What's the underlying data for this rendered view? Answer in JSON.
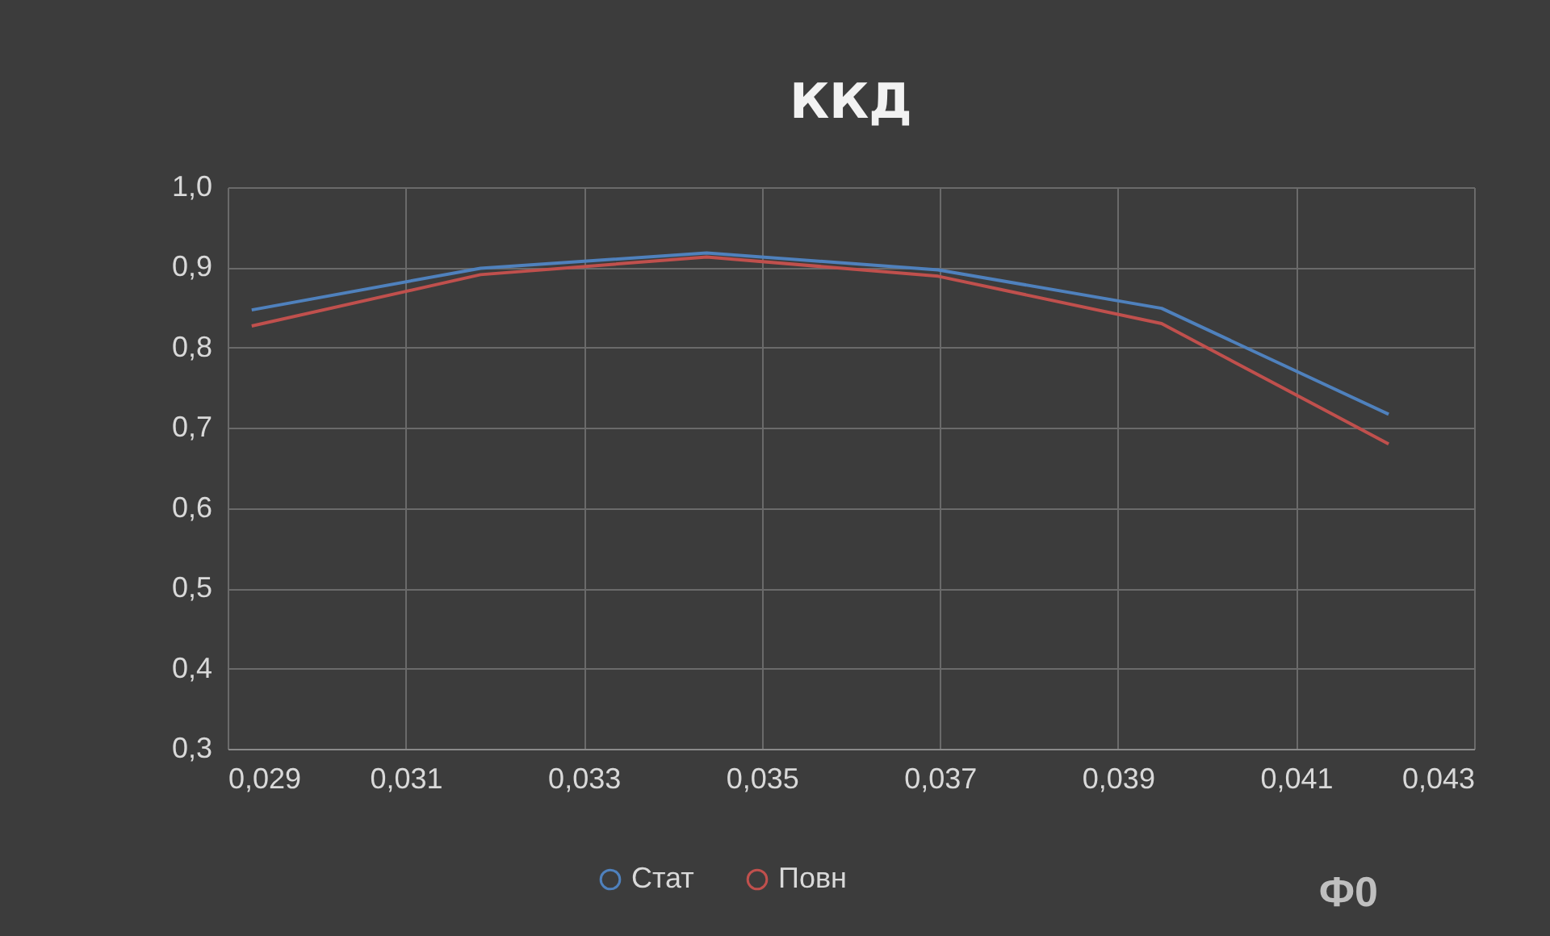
{
  "chart_data": {
    "type": "line",
    "title": "ККД",
    "xlabel": "Ф0",
    "x": [
      0.02927,
      0.03184,
      0.03438,
      0.03698,
      0.03949,
      0.04204
    ],
    "series": [
      {
        "name": "Стат",
        "color": "#4f81bd",
        "values": [
          0.847,
          0.899,
          0.918,
          0.897,
          0.849,
          0.717
        ]
      },
      {
        "name": "Повн",
        "color": "#c0504d",
        "values": [
          0.827,
          0.891,
          0.913,
          0.889,
          0.83,
          0.68
        ]
      }
    ],
    "xlim": [
      0.029,
      0.043
    ],
    "xticks": [
      {
        "value": 0.029,
        "label": "0,029"
      },
      {
        "value": 0.031,
        "label": "0,031"
      },
      {
        "value": 0.033,
        "label": "0,033"
      },
      {
        "value": 0.035,
        "label": "0,035"
      },
      {
        "value": 0.037,
        "label": "0,037"
      },
      {
        "value": 0.039,
        "label": "0,039"
      },
      {
        "value": 0.041,
        "label": "0,041"
      },
      {
        "value": 0.043,
        "label": "0,043"
      }
    ],
    "ylim": [
      0.3,
      1.0
    ],
    "yticks": [
      {
        "value": 0.3,
        "label": "0,3"
      },
      {
        "value": 0.4,
        "label": "0,4"
      },
      {
        "value": 0.5,
        "label": "0,5"
      },
      {
        "value": 0.6,
        "label": "0,6"
      },
      {
        "value": 0.7,
        "label": "0,7"
      },
      {
        "value": 0.8,
        "label": "0,8"
      },
      {
        "value": 0.9,
        "label": "0,9"
      },
      {
        "value": 1.0,
        "label": "1,0"
      }
    ],
    "grid": true,
    "legend": "bottom",
    "marker": "none",
    "line_style": "solid"
  }
}
